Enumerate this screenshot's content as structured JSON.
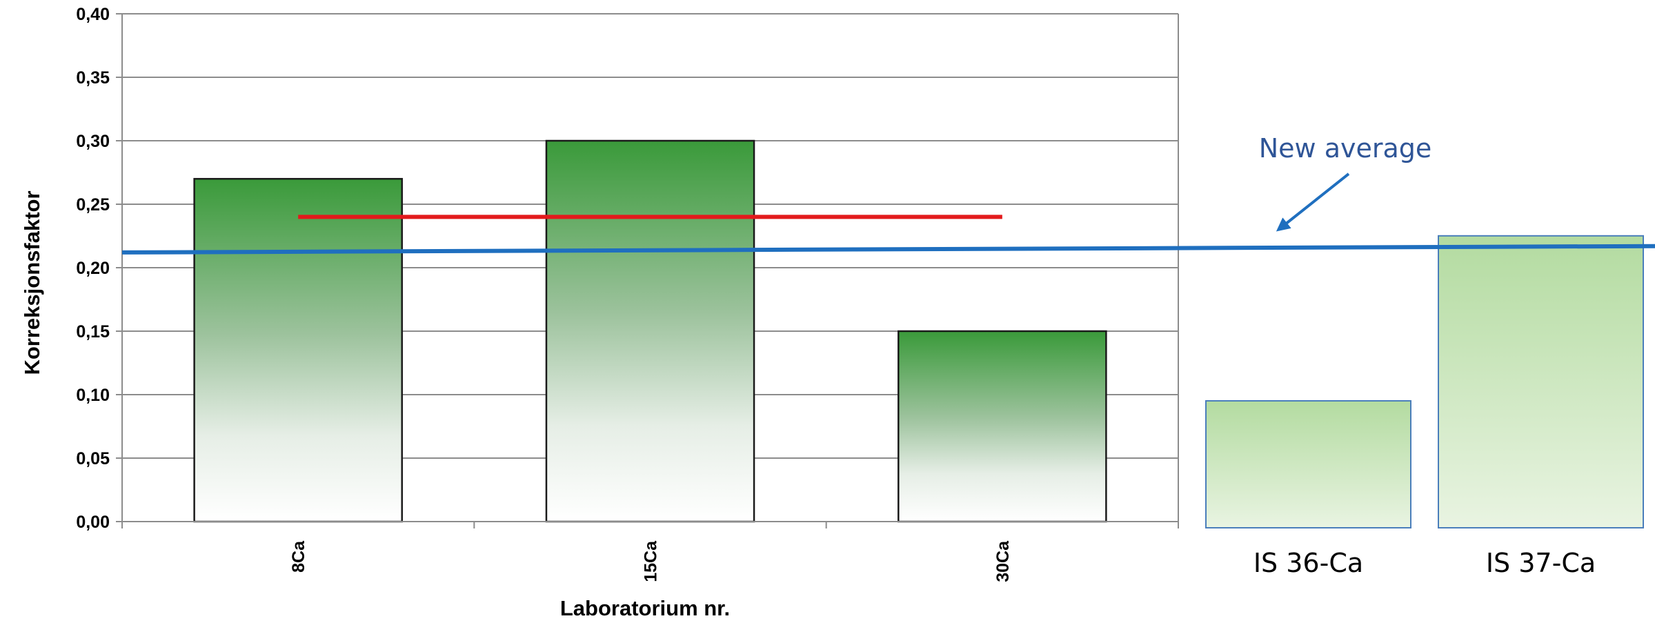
{
  "chart_data": {
    "type": "bar",
    "ylabel": "Korreksjonsfaktor",
    "xlabel": "Laboratorium nr.",
    "ylim": [
      0,
      0.4
    ],
    "yticks": [
      "0,00",
      "0,05",
      "0,10",
      "0,15",
      "0,20",
      "0,25",
      "0,30",
      "0,35",
      "0,40"
    ],
    "grid": true,
    "categories": [
      "8Ca",
      "15Ca",
      "30Ca"
    ],
    "values": [
      0.27,
      0.3,
      0.15
    ],
    "average_line": {
      "value": 0.24,
      "color": "#e31a1c"
    },
    "extra_bars": {
      "categories": [
        "IS 36-Ca",
        "IS 37-Ca"
      ],
      "values": [
        0.1,
        0.23
      ]
    },
    "new_average": {
      "label": "New average",
      "start_value": 0.212,
      "end_value": 0.217,
      "color": "#1f6fbf"
    },
    "colors": {
      "bar_top": "#3a9a3a",
      "extra_bar_top": "#b3dba0",
      "annotation": "#2f5597"
    }
  }
}
